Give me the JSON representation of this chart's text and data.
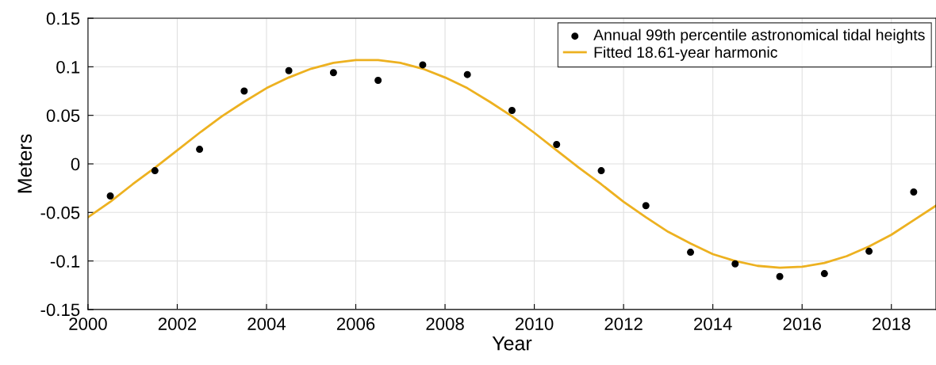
{
  "chart_data": {
    "type": "scatter",
    "xlabel": "Year",
    "ylabel": "Meters",
    "xlim": [
      2000,
      2019
    ],
    "xticks": [
      2000,
      2002,
      2004,
      2006,
      2008,
      2010,
      2012,
      2014,
      2016,
      2018
    ],
    "ylim": [
      -0.15,
      0.15
    ],
    "yticks": [
      -0.15,
      -0.1,
      -0.05,
      0,
      0.05,
      0.1,
      0.15
    ],
    "grid": true,
    "legend": "top right",
    "series": [
      {
        "name": "Annual 99th percentile astronomical tidal heights",
        "marker": "circle",
        "color": "#000000",
        "x": [
          2000.5,
          2001.5,
          2002.5,
          2003.5,
          2004.5,
          2005.5,
          2006.5,
          2007.5,
          2008.5,
          2009.5,
          2010.5,
          2011.5,
          2012.5,
          2013.5,
          2014.5,
          2015.5,
          2016.5,
          2017.5,
          2018.5
        ],
        "values": [
          -0.033,
          -0.007,
          0.015,
          0.075,
          0.096,
          0.094,
          0.086,
          0.102,
          0.092,
          0.055,
          0.02,
          -0.007,
          -0.043,
          -0.091,
          -0.103,
          -0.116,
          -0.113,
          -0.09,
          -0.029
        ]
      },
      {
        "name": "Fitted 18.61-year harmonic",
        "type": "line",
        "marker": "none",
        "line_style": "solid",
        "color": "#EDB120",
        "x": [
          2000,
          2000.5,
          2001,
          2001.5,
          2002,
          2002.5,
          2003,
          2003.5,
          2004,
          2004.5,
          2005,
          2005.5,
          2006,
          2006.5,
          2007,
          2007.5,
          2008,
          2008.5,
          2009,
          2009.5,
          2010,
          2010.5,
          2011,
          2011.5,
          2012,
          2012.5,
          2013,
          2013.5,
          2014,
          2014.5,
          2015,
          2015.5,
          2016,
          2016.5,
          2017,
          2017.5,
          2018,
          2018.5,
          2019
        ],
        "values": [
          -0.055,
          -0.039,
          -0.021,
          -0.004,
          0.014,
          0.032,
          0.049,
          0.064,
          0.078,
          0.089,
          0.098,
          0.104,
          0.107,
          0.107,
          0.104,
          0.098,
          0.089,
          0.078,
          0.064,
          0.049,
          0.032,
          0.014,
          -0.004,
          -0.021,
          -0.039,
          -0.055,
          -0.07,
          -0.082,
          -0.093,
          -0.1,
          -0.105,
          -0.107,
          -0.106,
          -0.102,
          -0.095,
          -0.085,
          -0.073,
          -0.058,
          -0.043
        ]
      }
    ]
  }
}
